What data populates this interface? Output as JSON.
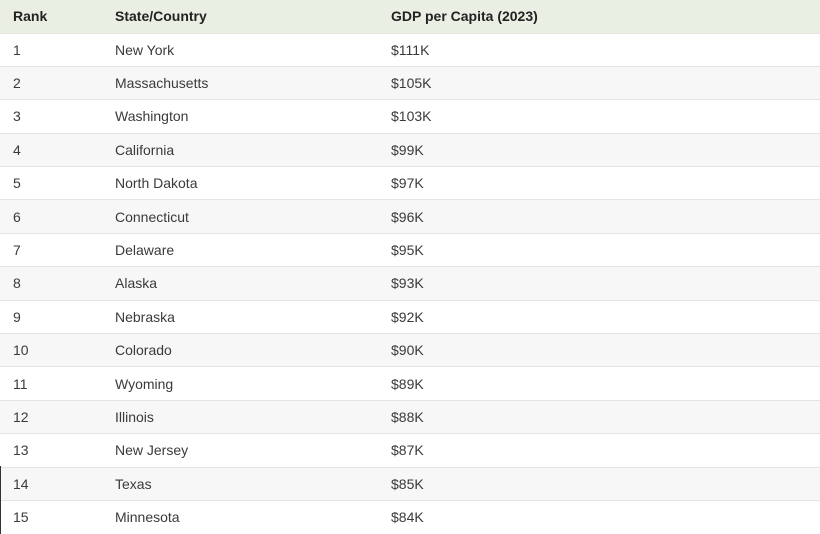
{
  "table": {
    "headers": {
      "rank": "Rank",
      "state": "State/Country",
      "gdp": "GDP per Capita (2023)"
    },
    "rows": [
      {
        "rank": "1",
        "state": "New York",
        "gdp": "$111K"
      },
      {
        "rank": "2",
        "state": "Massachusetts",
        "gdp": "$105K"
      },
      {
        "rank": "3",
        "state": "Washington",
        "gdp": "$103K"
      },
      {
        "rank": "4",
        "state": "California",
        "gdp": "$99K"
      },
      {
        "rank": "5",
        "state": "North Dakota",
        "gdp": "$97K"
      },
      {
        "rank": "6",
        "state": "Connecticut",
        "gdp": "$96K"
      },
      {
        "rank": "7",
        "state": "Delaware",
        "gdp": "$95K"
      },
      {
        "rank": "8",
        "state": "Alaska",
        "gdp": "$93K"
      },
      {
        "rank": "9",
        "state": "Nebraska",
        "gdp": "$92K"
      },
      {
        "rank": "10",
        "state": "Colorado",
        "gdp": "$90K"
      },
      {
        "rank": "11",
        "state": "Wyoming",
        "gdp": "$89K"
      },
      {
        "rank": "12",
        "state": "Illinois",
        "gdp": "$88K"
      },
      {
        "rank": "13",
        "state": "New Jersey",
        "gdp": "$87K"
      },
      {
        "rank": "14",
        "state": "Texas",
        "gdp": "$85K"
      },
      {
        "rank": "15",
        "state": "Minnesota",
        "gdp": "$84K"
      }
    ]
  },
  "colors": {
    "header_background": "#e9f0e3",
    "row_alt_background": "#f7f7f7",
    "row_border": "#e4e4e4"
  }
}
